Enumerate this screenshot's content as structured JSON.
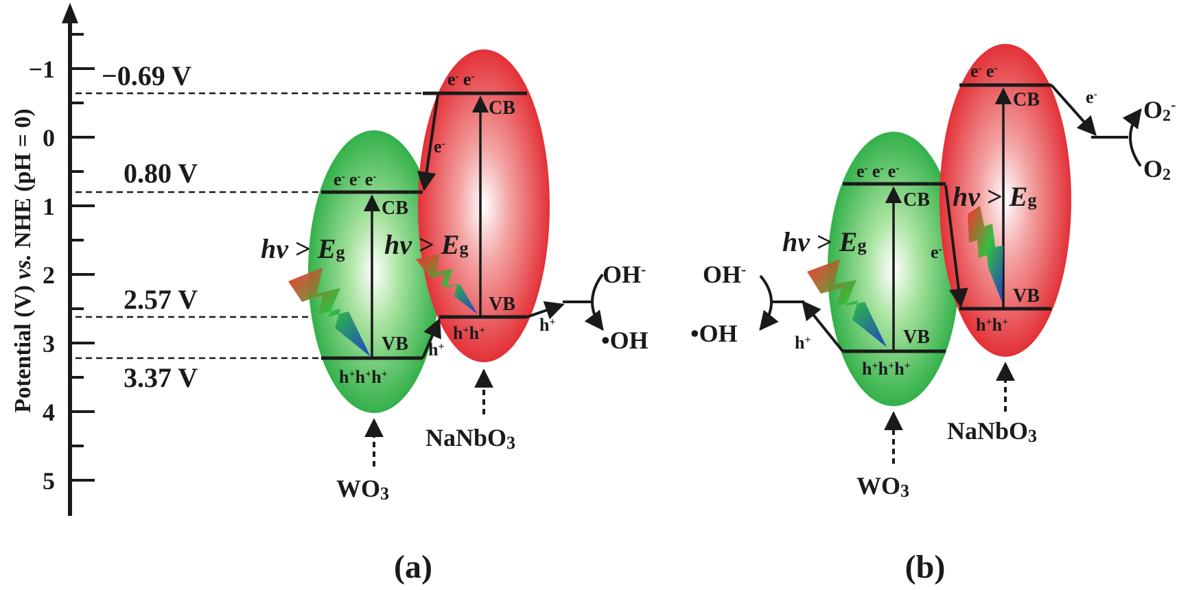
{
  "axis": {
    "label_prefix": "Potential (V) ",
    "label_italic": "vs.",
    "label_suffix": " NHE (pH = 0)",
    "ticks": [
      "−1",
      "0",
      "1",
      "2",
      "3",
      "4",
      "5"
    ]
  },
  "levels": {
    "nanbo3_cb": "−0.69 V",
    "wo3_cb": "0.80 V",
    "nanbo3_vb": "2.57 V",
    "wo3_vb": "3.37 V"
  },
  "panel_a": {
    "label": "(a)",
    "wo3": {
      "name": "WO",
      "sub": "3",
      "electrons": [
        "e",
        "e",
        "e"
      ],
      "holes": [
        "h",
        "h",
        "h"
      ],
      "cb": "CB",
      "vb": "VB"
    },
    "nanbo3": {
      "name": "NaNbO",
      "sub": "3",
      "electrons": [
        "e",
        "e"
      ],
      "holes": [
        "h",
        "h"
      ],
      "cb": "CB",
      "vb": "VB"
    },
    "eg_label": {
      "hv": "hv",
      "gt": " > ",
      "E": "E",
      "g": "g"
    },
    "transfer_e": "e",
    "transfer_h1": "h",
    "transfer_h2": "h",
    "oh_minus": "OH",
    "oh_radical": "•OH"
  },
  "panel_b": {
    "label": "(b)",
    "wo3": {
      "name": "WO",
      "sub": "3",
      "electrons": [
        "e",
        "e",
        "e"
      ],
      "holes": [
        "h",
        "h",
        "h"
      ],
      "cb": "CB",
      "vb": "VB"
    },
    "nanbo3": {
      "name": "NaNbO",
      "sub": "3",
      "electrons": [
        "e",
        "e"
      ],
      "holes": [
        "h",
        "h"
      ],
      "cb": "CB",
      "vb": "VB"
    },
    "eg_label": {
      "hv": "hv",
      "gt": " > ",
      "E": "E",
      "g": "g"
    },
    "transfer_e": "e",
    "transfer_e2": "e",
    "transfer_h": "h",
    "oh_minus": "OH",
    "oh_radical": "•OH",
    "o2": "O",
    "o2_sub": "2",
    "o2_minus": "O",
    "o2_minus_sub": "2"
  },
  "colors": {
    "green": "#2fb54a",
    "red": "#e8262b",
    "line": "#1a1a1a"
  }
}
